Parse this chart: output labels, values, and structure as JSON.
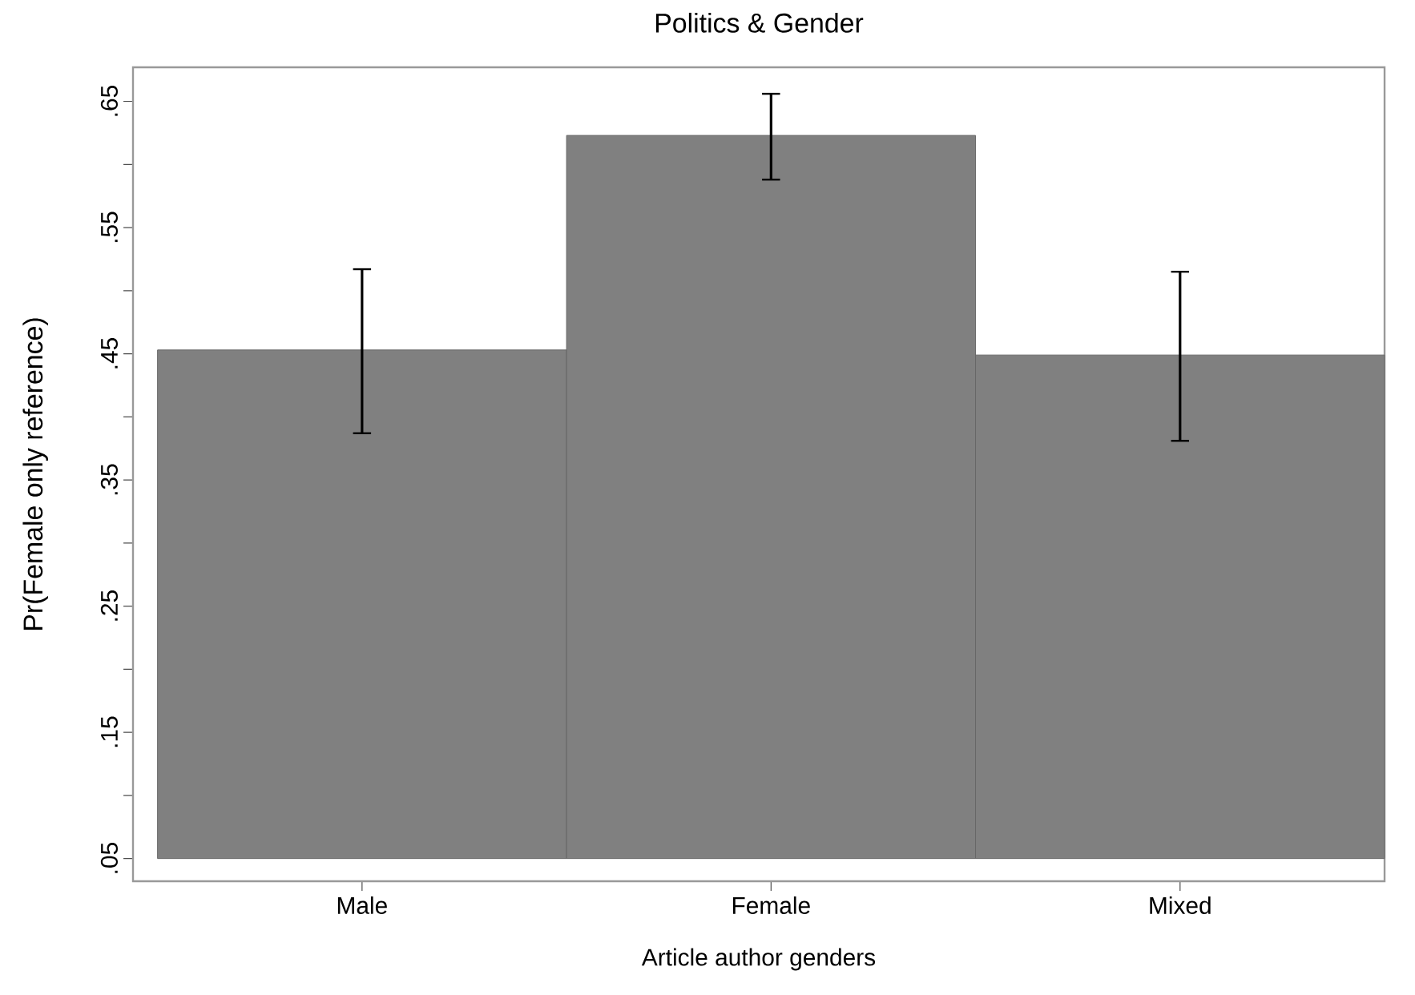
{
  "chart_data": {
    "type": "bar",
    "title": "Politics & Gender",
    "xlabel": "Article author genders",
    "ylabel": "Pr(Female only reference)",
    "categories": [
      "Male",
      "Female",
      "Mixed"
    ],
    "base": [
      0.05,
      0.05,
      0.05
    ],
    "values": [
      0.403,
      0.573,
      0.399
    ],
    "errors": [
      [
        0.387,
        0.517
      ],
      [
        0.588,
        0.656
      ],
      [
        0.381,
        0.515
      ]
    ],
    "color": "#808080",
    "ylim": [
      0.032,
      0.677
    ],
    "yticks": [
      {
        "value": 0.05,
        "label": ".05"
      },
      {
        "value": 0.1,
        "label": null
      },
      {
        "value": 0.15,
        "label": ".15"
      },
      {
        "value": 0.2,
        "label": null
      },
      {
        "value": 0.25,
        "label": ".25"
      },
      {
        "value": 0.3,
        "label": null
      },
      {
        "value": 0.35,
        "label": ".35"
      },
      {
        "value": 0.4,
        "label": null
      },
      {
        "value": 0.45,
        "label": ".45"
      },
      {
        "value": 0.5,
        "label": null
      },
      {
        "value": 0.55,
        "label": ".55"
      },
      {
        "value": 0.6,
        "label": null
      },
      {
        "value": 0.65,
        "label": ".65"
      }
    ],
    "grid": false
  }
}
